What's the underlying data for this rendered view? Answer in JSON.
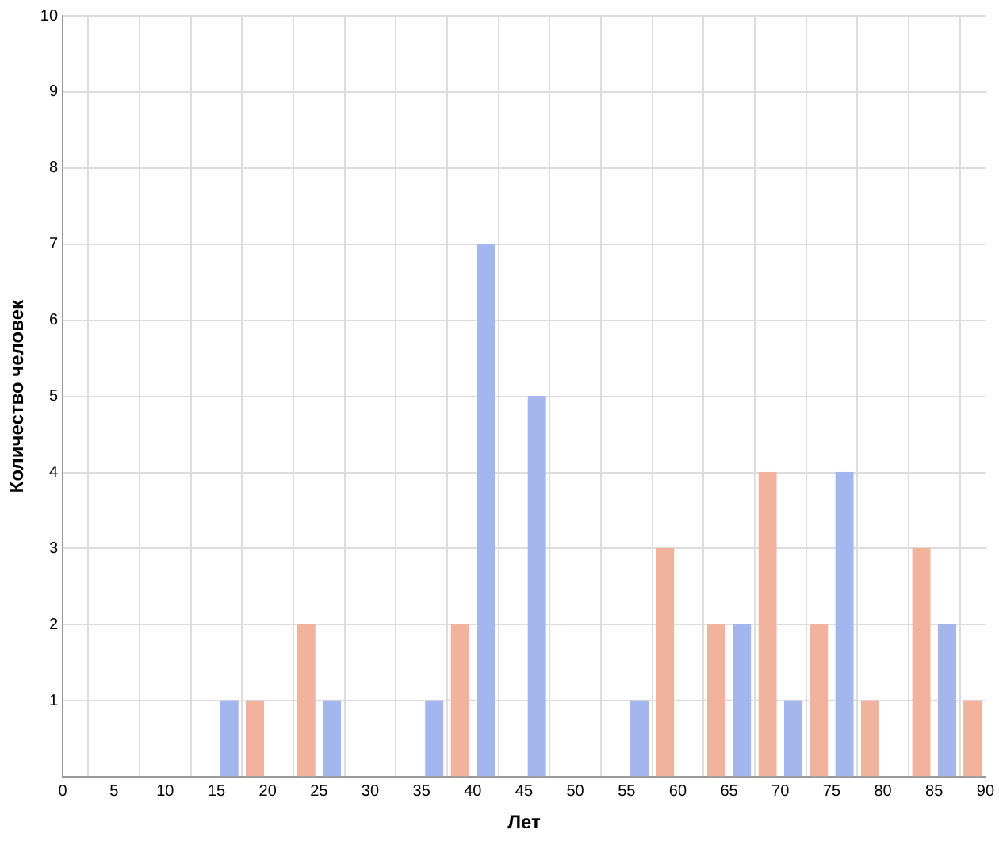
{
  "chart_data": {
    "type": "bar",
    "xlabel": "Лет",
    "ylabel": "Количество человек",
    "series": [
      {
        "color": "#a3b6ee",
        "x": [
          16.25,
          26.25,
          36.25,
          41.25,
          46.25,
          56.25,
          66.25,
          71.25,
          76.25,
          86.25
        ],
        "values": [
          1,
          1,
          1,
          7,
          5,
          1,
          2,
          1,
          4,
          2
        ]
      },
      {
        "color": "#f2b39e",
        "x": [
          18.75,
          23.75,
          38.75,
          58.75,
          63.75,
          68.75,
          73.75,
          78.75,
          83.75,
          88.75
        ],
        "values": [
          1,
          2,
          2,
          3,
          2,
          4,
          2,
          1,
          3,
          1
        ]
      }
    ],
    "xlim": [
      0,
      90
    ],
    "xticks": [
      0,
      5,
      10,
      15,
      20,
      25,
      30,
      35,
      40,
      45,
      50,
      55,
      60,
      65,
      70,
      75,
      80,
      85,
      90
    ],
    "ylim": [
      0,
      10
    ],
    "yticks": [
      {
        "value": 0,
        "label": null
      },
      1,
      2,
      3,
      4,
      5,
      6,
      7,
      8,
      9,
      10
    ],
    "grid": true
  }
}
